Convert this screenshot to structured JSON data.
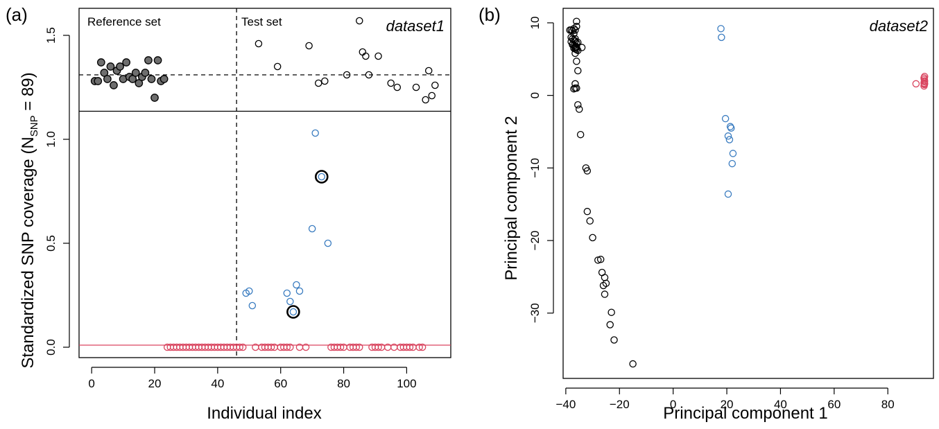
{
  "panels": {
    "a": {
      "letter": "(a)",
      "dataset_label": "dataset1",
      "reference_label": "Reference set",
      "test_label": "Test set",
      "xlabel": "Individual index",
      "ylabel_main": "Standardized SNP coverage  (N",
      "ylabel_sub": "SNP",
      "ylabel_tail": " = 89)"
    },
    "b": {
      "letter": "(b)",
      "dataset_label": "dataset2",
      "xlabel": "Principal component 1",
      "ylabel": "Principal component 2"
    }
  },
  "colors": {
    "black": "#000000",
    "grey_fill": "#6e6e6e",
    "blue": "#3a7cc0",
    "red": "#d9455f"
  },
  "chart_data": [
    {
      "type": "scatter",
      "panel": "a",
      "xlabel": "Individual index",
      "ylabel": "Standardized SNP coverage (N_SNP = 89)",
      "xlim": [
        -4,
        114
      ],
      "ylim": [
        -0.05,
        1.63
      ],
      "x_ticks": [
        0,
        20,
        40,
        60,
        80,
        100
      ],
      "x_tick_labels": [
        "0",
        "20",
        "40",
        "60",
        "80",
        "100"
      ],
      "y_ticks": [
        0.0,
        0.5,
        1.0,
        1.5
      ],
      "y_tick_labels": [
        "0.0",
        "0.5",
        "1.0",
        "1.5"
      ],
      "split_x": 46,
      "split_y": 1.135,
      "reference_line_upper": 1.31,
      "reference_line_lower": 0.01,
      "series": [
        {
          "role": "reference",
          "color": "#6e6e6e",
          "filled": true,
          "x": [
            1,
            2,
            3,
            4,
            5,
            6,
            7,
            8,
            9,
            10,
            11,
            12,
            13,
            14,
            15,
            16,
            17,
            18,
            19,
            20,
            21,
            22,
            23
          ],
          "y": [
            1.28,
            1.28,
            1.37,
            1.32,
            1.29,
            1.35,
            1.26,
            1.33,
            1.35,
            1.29,
            1.37,
            1.3,
            1.29,
            1.32,
            1.27,
            1.3,
            1.32,
            1.38,
            1.29,
            1.2,
            1.38,
            1.28,
            1.29
          ]
        },
        {
          "role": "test-black",
          "color": "#000000",
          "filled": false,
          "x": [
            53,
            59,
            69,
            72,
            74,
            81,
            85,
            86,
            87,
            88,
            91,
            95,
            97,
            103,
            106,
            107,
            108,
            109
          ],
          "y": [
            1.46,
            1.35,
            1.45,
            1.27,
            1.28,
            1.31,
            1.57,
            1.42,
            1.4,
            1.31,
            1.4,
            1.27,
            1.25,
            1.25,
            1.19,
            1.33,
            1.21,
            1.26
          ]
        },
        {
          "role": "test-blue",
          "color": "#3a7cc0",
          "filled": false,
          "x": [
            49,
            50,
            51,
            62,
            63,
            64,
            65,
            66,
            70,
            71,
            73,
            75
          ],
          "y": [
            0.26,
            0.27,
            0.2,
            0.26,
            0.22,
            0.17,
            0.3,
            0.27,
            0.57,
            1.03,
            0.82,
            0.5
          ]
        },
        {
          "role": "test-red",
          "color": "#d9455f",
          "filled": false,
          "x": [
            24,
            25,
            26,
            27,
            28,
            29,
            30,
            31,
            32,
            33,
            34,
            35,
            36,
            37,
            38,
            39,
            40,
            41,
            42,
            43,
            44,
            45,
            46,
            47,
            48,
            52,
            54,
            55,
            56,
            57,
            58,
            60,
            61,
            62,
            63,
            66,
            68,
            76,
            77,
            78,
            79,
            80,
            82,
            83,
            84,
            85,
            89,
            90,
            91,
            92,
            94,
            96,
            98,
            99,
            100,
            101,
            102,
            104,
            105
          ],
          "y": [
            0,
            0,
            0,
            0,
            0,
            0,
            0,
            0,
            0,
            0,
            0,
            0,
            0,
            0,
            0,
            0,
            0,
            0,
            0,
            0,
            0,
            0,
            0,
            0,
            0,
            0,
            0,
            0,
            0,
            0,
            0,
            0,
            0,
            0,
            0,
            0,
            0,
            0,
            0,
            0,
            0,
            0,
            0,
            0,
            0,
            0,
            0,
            0,
            0,
            0,
            0,
            0,
            0,
            0,
            0,
            0,
            0,
            0,
            0
          ]
        }
      ],
      "highlighted": [
        {
          "x": 64,
          "y": 0.17
        },
        {
          "x": 73,
          "y": 0.82
        }
      ]
    },
    {
      "type": "scatter",
      "panel": "b",
      "xlabel": "Principal component 1",
      "ylabel": "Principal component 2",
      "xlim": [
        -41,
        97
      ],
      "ylim": [
        -39,
        12
      ],
      "x_ticks": [
        -40,
        -20,
        0,
        20,
        40,
        60,
        80
      ],
      "x_tick_labels": [
        "−40",
        "−20",
        "0",
        "20",
        "40",
        "60",
        "80"
      ],
      "y_ticks": [
        -30,
        -20,
        -10,
        0,
        10
      ],
      "y_tick_labels": [
        "−30",
        "−20",
        "−10",
        "0",
        "10"
      ],
      "series": [
        {
          "role": "black",
          "color": "#000000",
          "filled": false,
          "x": [
            -38.5,
            -38,
            -37.5,
            -37,
            -36.5,
            -36,
            -38,
            -37.5,
            -37,
            -36.5,
            -36,
            -37.5,
            -37,
            -36.5,
            -36,
            -35.5,
            -38,
            -37,
            -36.5,
            -36,
            -35.5,
            -37.5,
            -36.5,
            -36,
            -37,
            -36.5,
            -36,
            -35.5,
            -36,
            -34,
            -36.5,
            -36,
            -36.5,
            -37,
            -35.5,
            -35,
            -34.5,
            -32.5,
            -32,
            -32,
            -31,
            -30,
            -28,
            -27,
            -26.5,
            -26,
            -25.5,
            -25,
            -25.5,
            -23,
            -23.5,
            -22,
            -15
          ],
          "y": [
            9.0,
            9.0,
            8.9,
            9.2,
            9.0,
            9.5,
            8.0,
            7.8,
            7.6,
            7.5,
            7.2,
            7.0,
            6.9,
            6.6,
            6.7,
            7.3,
            7.4,
            6.5,
            6.4,
            6.3,
            6.2,
            7.0,
            7.8,
            10.2,
            8.5,
            5.8,
            4.7,
            3.4,
            6.6,
            6.6,
            1.6,
            1.0,
            1.0,
            0.9,
            -1.3,
            -1.9,
            -5.4,
            -10.0,
            -10.4,
            -16.0,
            -17.3,
            -19.6,
            -22.7,
            -22.6,
            -24.4,
            -26.2,
            -25.1,
            -25.9,
            -27.4,
            -29.9,
            -31.6,
            -33.7,
            -37.0
          ]
        },
        {
          "role": "blue",
          "color": "#3a7cc0",
          "filled": false,
          "x": [
            17.8,
            18.0,
            19.5,
            20.5,
            21.0,
            21.3,
            21.6,
            22.3,
            22.0,
            20.5
          ],
          "y": [
            9.2,
            8.0,
            -3.2,
            -5.6,
            -6.1,
            -4.3,
            -4.5,
            -8.0,
            -9.4,
            -13.6
          ]
        },
        {
          "role": "red",
          "color": "#d9455f",
          "filled": false,
          "x": [
            90.5,
            93.5,
            93.6,
            93.7,
            93.6,
            93.5,
            93.7,
            93.6,
            93.5,
            93.7
          ],
          "y": [
            1.6,
            2.4,
            2.2,
            2.0,
            1.9,
            1.7,
            1.6,
            1.5,
            1.3,
            2.6
          ]
        }
      ]
    }
  ]
}
